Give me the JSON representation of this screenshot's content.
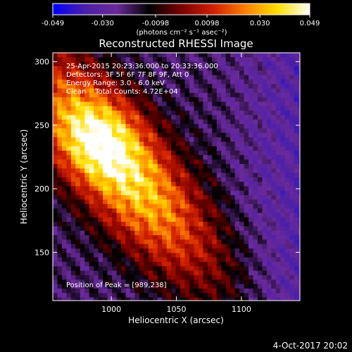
{
  "chart_data": {
    "type": "heatmap",
    "title": "Reconstructed RHESSI Image",
    "xlabel": "Heliocentric X (arcsec)",
    "ylabel": "Heliocentric Y (arcsec)",
    "xlim": [
      955,
      1145
    ],
    "ylim": [
      112,
      307
    ],
    "x_ticks": [
      1000,
      1050,
      1100
    ],
    "y_ticks": [
      150,
      200,
      250,
      300
    ],
    "colorbar": {
      "range": [
        -0.049,
        0.049
      ],
      "tick_values": [
        -0.049,
        -0.03,
        -0.0098,
        0.0098,
        0.03,
        0.049
      ],
      "tick_labels": [
        "-0.049",
        "-0.030",
        "-0.0098",
        "0.0098",
        "0.030",
        "0.049"
      ],
      "unit_label": "(photons cm⁻² s⁻¹ asec⁻²)"
    },
    "annotations": [
      "25-Apr-2015 20:23:36.000 to 20:33:36.000",
      "Detectors: 3F 5F 6F 7F 8F 9F, Att 0",
      "Energy Range: 3.0 - 6.0 keV",
      "Clean    Total Counts: 4.72E+04"
    ],
    "peak_label": "Position of Peak = [989,238]",
    "peak": {
      "x": 989,
      "y": 238
    },
    "grid": false
  },
  "footer": {
    "date": "4-Oct-2017 20:02"
  },
  "colors": {
    "background": "#000000",
    "text": "#ffffff",
    "colormap": [
      "#0000ff",
      "#4b1fa8",
      "#6a2a9a",
      "#000000",
      "#7a0000",
      "#d02000",
      "#ff8000",
      "#ffe000",
      "#ffffff"
    ]
  }
}
